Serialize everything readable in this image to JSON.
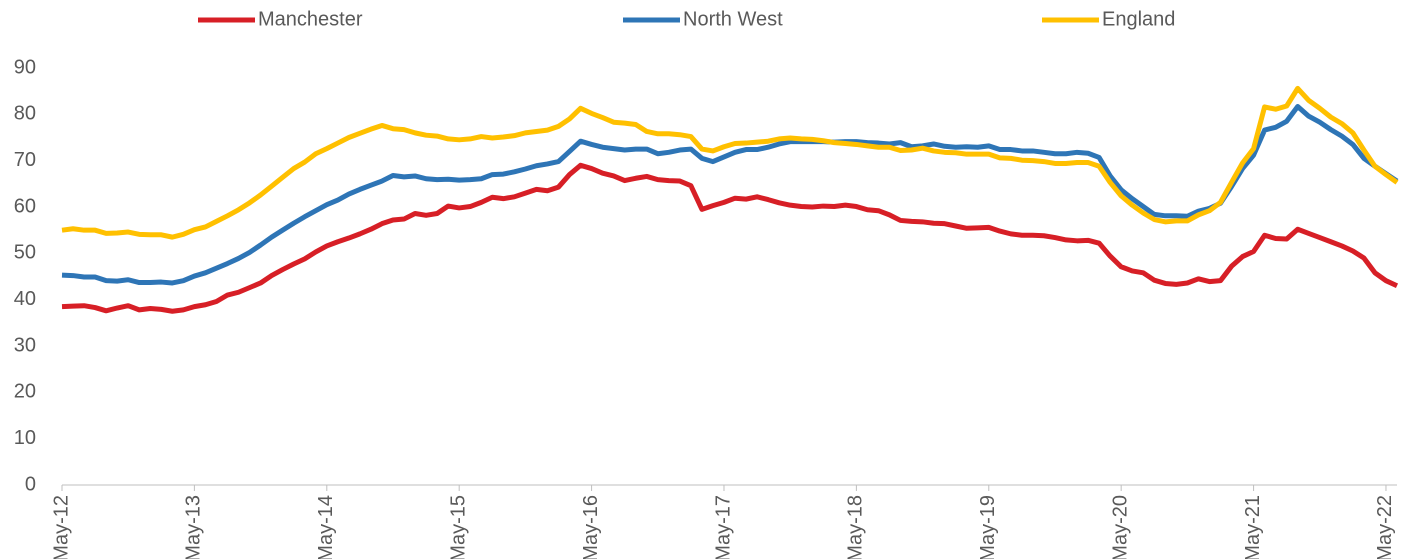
{
  "chart_data": {
    "type": "line",
    "categories": [
      "May-12",
      null,
      null,
      null,
      null,
      null,
      null,
      null,
      null,
      null,
      null,
      null,
      "May-13",
      null,
      null,
      null,
      null,
      null,
      null,
      null,
      null,
      null,
      null,
      null,
      "May-14",
      null,
      null,
      null,
      null,
      null,
      null,
      null,
      null,
      null,
      null,
      null,
      "May-15",
      null,
      null,
      null,
      null,
      null,
      null,
      null,
      null,
      null,
      null,
      null,
      "May-16",
      null,
      null,
      null,
      null,
      null,
      null,
      null,
      null,
      null,
      null,
      null,
      "May-17",
      null,
      null,
      null,
      null,
      null,
      null,
      null,
      null,
      null,
      null,
      null,
      "May-18",
      null,
      null,
      null,
      null,
      null,
      null,
      null,
      null,
      null,
      null,
      null,
      "May-19",
      null,
      null,
      null,
      null,
      null,
      null,
      null,
      null,
      null,
      null,
      null,
      "May-20",
      null,
      null,
      null,
      null,
      null,
      null,
      null,
      null,
      null,
      null,
      null,
      "May-21",
      null,
      null,
      null,
      null,
      null,
      null,
      null,
      null,
      null,
      null,
      null,
      "May-22",
      null
    ],
    "series": [
      {
        "name": "Manchester",
        "color": "#d71f26",
        "values": [
          38.5,
          38.6,
          38.7,
          38.3,
          37.6,
          38.2,
          38.7,
          37.8,
          38.1,
          37.9,
          37.5,
          37.8,
          38.5,
          38.9,
          39.6,
          41,
          41.6,
          42.6,
          43.6,
          45.2,
          46.5,
          47.7,
          48.8,
          50.3,
          51.6,
          52.5,
          53.3,
          54.2,
          55.2,
          56.4,
          57.2,
          57.4,
          58.6,
          58.2,
          58.6,
          60.2,
          59.8,
          60.1,
          61,
          62.1,
          61.8,
          62.2,
          63,
          63.8,
          63.5,
          64.3,
          67,
          69,
          68.3,
          67.3,
          66.7,
          65.7,
          66.2,
          66.6,
          65.9,
          65.7,
          65.6,
          64.6,
          59.5,
          60.3,
          61,
          61.9,
          61.7,
          62.2,
          61.6,
          60.9,
          60.4,
          60.1,
          60,
          60.2,
          60.1,
          60.4,
          60.1,
          59.4,
          59.2,
          58.3,
          57.1,
          56.9,
          56.8,
          56.5,
          56.4,
          55.9,
          55.4,
          55.5,
          55.6,
          54.8,
          54.2,
          53.9,
          53.9,
          53.8,
          53.4,
          52.9,
          52.7,
          52.8,
          52.2,
          49.4,
          47.1,
          46.2,
          45.8,
          44.2,
          43.5,
          43.3,
          43.6,
          44.5,
          43.9,
          44.1,
          47.2,
          49.3,
          50.4,
          53.9,
          53.2,
          53.1,
          55.2,
          54.3,
          53.4,
          52.5,
          51.6,
          50.5,
          49,
          45.8,
          44.1,
          43
        ]
      },
      {
        "name": "North West",
        "color": "#2e75b6",
        "values": [
          45.3,
          45.2,
          44.9,
          44.9,
          44.1,
          44,
          44.3,
          43.7,
          43.7,
          43.8,
          43.6,
          44.1,
          45.1,
          45.8,
          46.8,
          47.8,
          48.9,
          50.2,
          51.8,
          53.5,
          55,
          56.5,
          57.9,
          59.2,
          60.5,
          61.5,
          62.8,
          63.8,
          64.7,
          65.6,
          66.8,
          66.5,
          66.7,
          66.1,
          65.9,
          66,
          65.8,
          65.9,
          66.1,
          67,
          67.1,
          67.6,
          68.2,
          68.9,
          69.3,
          69.8,
          72,
          74.2,
          73.5,
          72.9,
          72.6,
          72.3,
          72.5,
          72.5,
          71.5,
          71.8,
          72.3,
          72.5,
          70.5,
          69.8,
          70.8,
          71.8,
          72.4,
          72.4,
          72.9,
          73.6,
          74.1,
          74.1,
          74.1,
          74.1,
          74,
          74.1,
          74.1,
          73.9,
          73.8,
          73.6,
          73.9,
          73,
          73.2,
          73.6,
          73.1,
          72.9,
          73,
          72.9,
          73.2,
          72.4,
          72.4,
          72.1,
          72.1,
          71.8,
          71.5,
          71.5,
          71.8,
          71.6,
          70.7,
          66.7,
          63.7,
          61.8,
          60.1,
          58.4,
          58.1,
          58.1,
          58,
          59.1,
          59.7,
          60.8,
          64.4,
          68.3,
          71.2,
          76.6,
          77.2,
          78.5,
          81.7,
          79.6,
          78.3,
          76.7,
          75.3,
          73.5,
          70.5,
          68.8,
          67.2,
          65.6
        ]
      },
      {
        "name": "England",
        "color": "#ffc000",
        "values": [
          55,
          55.3,
          55,
          55,
          54.3,
          54.4,
          54.6,
          54.1,
          54,
          54,
          53.5,
          54.1,
          55.1,
          55.7,
          56.9,
          58.1,
          59.4,
          60.9,
          62.6,
          64.5,
          66.4,
          68.3,
          69.7,
          71.5,
          72.6,
          73.8,
          75,
          75.9,
          76.8,
          77.6,
          76.9,
          76.7,
          76,
          75.5,
          75.3,
          74.7,
          74.5,
          74.7,
          75.2,
          74.9,
          75.1,
          75.4,
          76,
          76.3,
          76.6,
          77.4,
          79,
          81.3,
          80.2,
          79.3,
          78.3,
          78.1,
          77.8,
          76.3,
          75.8,
          75.8,
          75.6,
          75.2,
          72.5,
          72.1,
          73,
          73.7,
          73.8,
          74,
          74.2,
          74.7,
          74.9,
          74.7,
          74.6,
          74.3,
          73.9,
          73.7,
          73.5,
          73.2,
          72.9,
          72.9,
          72.2,
          72.3,
          72.7,
          72.1,
          71.8,
          71.7,
          71.4,
          71.4,
          71.4,
          70.6,
          70.5,
          70.1,
          70,
          69.8,
          69.4,
          69.4,
          69.6,
          69.6,
          68.8,
          65.3,
          62.4,
          60.4,
          58.7,
          57.3,
          56.8,
          57,
          57,
          58.3,
          59.2,
          61,
          65.3,
          69.5,
          72.6,
          81.6,
          81.1,
          81.8,
          85.6,
          83,
          81.3,
          79.4,
          78,
          76,
          72.3,
          68.8,
          67,
          65.3
        ]
      }
    ],
    "ylim": [
      0,
      90
    ],
    "yticks": [
      0,
      10,
      20,
      30,
      40,
      50,
      60,
      70,
      80,
      90
    ],
    "grid": false,
    "legend": "top"
  }
}
